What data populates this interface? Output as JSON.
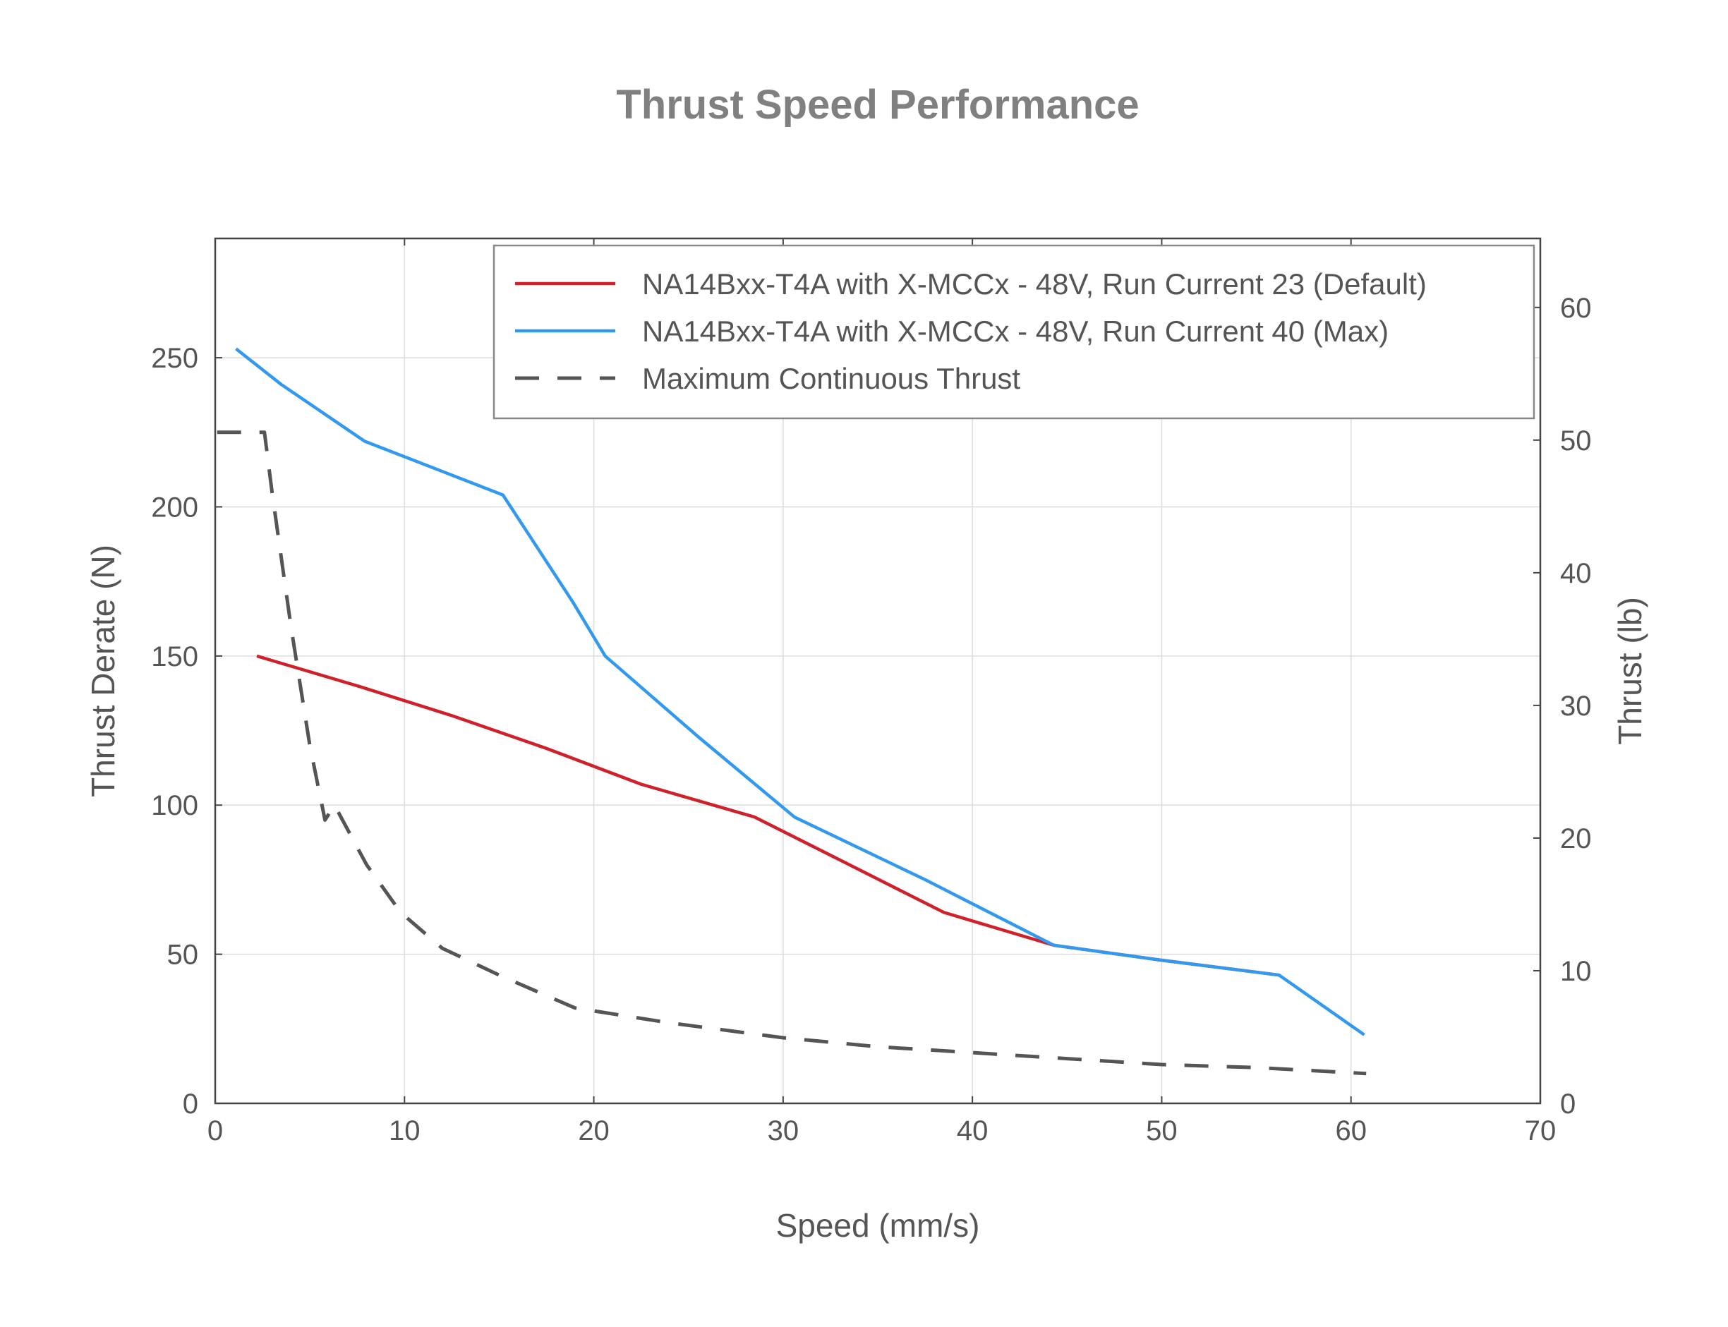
{
  "chart_data": {
    "type": "line",
    "title": "Thrust Speed Performance",
    "xlabel": "Speed (mm/s)",
    "ylabel": "Thrust Derate (N)",
    "y2label": "Thrust (lb)",
    "xlim": [
      0,
      70
    ],
    "ylim": [
      0,
      290
    ],
    "y2lim": [
      0,
      65.2
    ],
    "xticks": [
      0,
      10,
      20,
      30,
      40,
      50,
      60,
      70
    ],
    "yticks": [
      0,
      50,
      100,
      150,
      200,
      250
    ],
    "y2ticks": [
      0,
      10,
      20,
      30,
      40,
      50,
      60
    ],
    "grid": true,
    "legend_position": "top-right",
    "series": [
      {
        "name": "NA14Bxx-T4A with X-MCCx - 48V, Run Current 23 (Default)",
        "color": "#d0202a",
        "style": "solid",
        "x": [
          2.2,
          7.5,
          12.5,
          17.5,
          22.5,
          28.5,
          33.5,
          38.5,
          44.3,
          50.0,
          56.2
        ],
        "y": [
          150,
          140,
          130,
          119,
          107,
          96,
          80,
          64,
          53,
          48,
          43
        ]
      },
      {
        "name": "NA14Bxx-T4A with X-MCCx - 48V, Run Current 40 (Max)",
        "color": "#3399ee",
        "style": "solid",
        "x": [
          1.1,
          3.5,
          7.9,
          15.2,
          18.9,
          20.6,
          25.5,
          30.6,
          37.5,
          44.3,
          50.0,
          56.2,
          60.7
        ],
        "y": [
          253,
          241,
          222,
          204,
          168,
          150,
          123,
          96,
          75,
          53,
          48,
          43,
          23
        ]
      },
      {
        "name": "Maximum Continuous Thrust",
        "color": "#555555",
        "style": "dashed",
        "x": [
          0.1,
          2.6,
          3.0,
          4.0,
          5.0,
          5.8,
          6.3,
          8.0,
          9.8,
          12.0,
          15.0,
          19.0,
          24.0,
          30.0,
          35.0,
          40.0,
          45.0,
          50.0,
          55.0,
          60.8
        ],
        "y": [
          225,
          225,
          205,
          160,
          120,
          95,
          100,
          80,
          64,
          52,
          43,
          32,
          27,
          22,
          19,
          17,
          15,
          13,
          12,
          10
        ]
      }
    ]
  }
}
